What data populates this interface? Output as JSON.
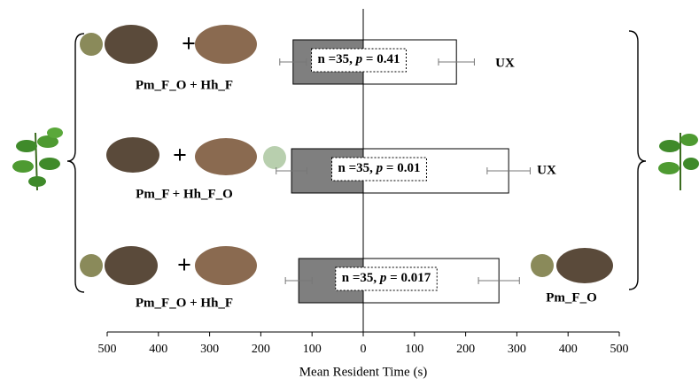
{
  "chart_data": {
    "type": "diverging-bar",
    "x_label": "Mean Resident Time (s)",
    "categories": [
      "Pm_F_O + Hh_F",
      "Pm_F + Hh_F_O",
      "Pm_F_O + Hh_F"
    ],
    "right_labels": [
      "UX",
      "UX",
      "Pm_F_O"
    ],
    "stat_labels": [
      [
        "n =35, ",
        "p",
        " = 0.41"
      ],
      [
        "n =35, ",
        "p",
        " = 0.01"
      ],
      [
        "n =35, ",
        "p",
        " = 0.017"
      ]
    ],
    "series": [
      {
        "color": "#7f7f7f",
        "values": [
          -137,
          -140,
          -126
        ],
        "errors": [
          26,
          30,
          26
        ]
      },
      {
        "color": "#ffffff",
        "values": [
          182,
          284,
          265
        ],
        "errors": [
          35,
          42,
          40
        ]
      }
    ],
    "xlim": [
      -500,
      500
    ],
    "xticks": [
      {
        "value": -500,
        "label": "500"
      },
      {
        "value": -400,
        "label": "400"
      },
      {
        "value": -300,
        "label": "300"
      },
      {
        "value": -200,
        "label": "200"
      },
      {
        "value": -100,
        "label": "100"
      },
      0,
      100,
      200,
      300,
      400,
      500
    ]
  }
}
